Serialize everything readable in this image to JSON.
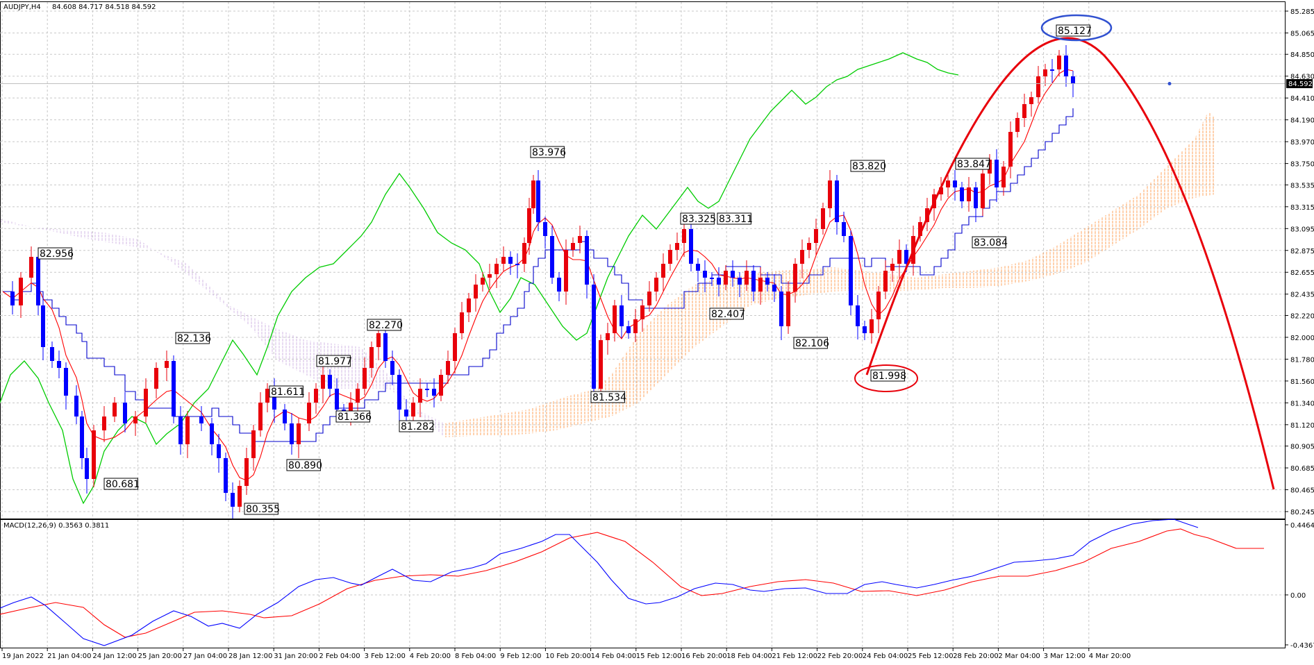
{
  "main_panel": {
    "symbol": "AUDJPY,H4",
    "ohlc": "84.608 84.717 84.518 84.592",
    "price_ticks": [
      "85.285",
      "85.065",
      "84.850",
      "84.630",
      "84.410",
      "84.190",
      "83.970",
      "83.750",
      "83.535",
      "83.315",
      "83.095",
      "82.875",
      "82.655",
      "82.435",
      "82.220",
      "82.000",
      "81.780",
      "81.560",
      "81.340",
      "81.120",
      "80.905",
      "80.685",
      "80.465",
      "80.245"
    ],
    "current_price": "84.592"
  },
  "macd_panel": {
    "label": "MACD(12,26,9) 0.3563 0.3811",
    "ticks": [
      "0.4464",
      "0.00",
      "-0.4367"
    ]
  },
  "time_labels": [
    "19 Jan 2022",
    "21 Jan 04:00",
    "24 Jan 12:00",
    "25 Jan 20:00",
    "27 Jan 04:00",
    "28 Jan 12:00",
    "31 Jan 20:00",
    "2 Feb 04:00",
    "3 Feb 12:00",
    "4 Feb 20:00",
    "8 Feb 04:00",
    "9 Feb 12:00",
    "10 Feb 20:00",
    "14 Feb 04:00",
    "15 Feb 12:00",
    "16 Feb 20:00",
    "18 Feb 04:00",
    "21 Feb 12:00",
    "22 Feb 20:00",
    "24 Feb 04:00",
    "25 Feb 12:00",
    "28 Feb 20:00",
    "2 Mar 04:00",
    "3 Mar 12:00",
    "4 Mar 20:00"
  ],
  "annotations": [
    "82.956",
    "82.136",
    "80.681",
    "80.355",
    "81.611",
    "80.890",
    "81.977",
    "81.366",
    "82.270",
    "81.282",
    "83.976",
    "81.534",
    "83.325",
    "83.311",
    "82.407",
    "82.106",
    "83.820",
    "81.998",
    "83.847",
    "83.084",
    "85.127"
  ],
  "colors": {
    "bull": "#e8000b",
    "bear": "#0000ff",
    "tenkan": "#ff0000",
    "kijun": "#0000cc",
    "chikou": "#00cc00",
    "arc": "#e8000b"
  },
  "chart_data": [
    {
      "type": "candlestick",
      "title": "AUDJPY,H4",
      "indicators": [
        "Ichimoku Kinko Hyo (tenkan, kijun, chikou, cloud)"
      ],
      "ylim": [
        80.245,
        85.285
      ],
      "grid": true,
      "key_levels": [
        {
          "time": "~20 Jan 2022",
          "price": 82.956,
          "kind": "high"
        },
        {
          "time": "~25 Jan 2022",
          "price": 82.136,
          "kind": "high"
        },
        {
          "time": "~24 Jan 2022",
          "price": 80.681,
          "kind": "low"
        },
        {
          "time": "~28 Jan 2022",
          "price": 80.355,
          "kind": "low"
        },
        {
          "time": "~31 Jan 2022",
          "price": 81.611,
          "kind": "high"
        },
        {
          "time": "~1 Feb 2022",
          "price": 80.89,
          "kind": "low"
        },
        {
          "time": "~2 Feb 2022",
          "price": 81.977,
          "kind": "high"
        },
        {
          "time": "~3 Feb 2022",
          "price": 81.366,
          "kind": "low"
        },
        {
          "time": "~4 Feb 2022",
          "price": 82.27,
          "kind": "high"
        },
        {
          "time": "~4 Feb 2022",
          "price": 81.282,
          "kind": "low"
        },
        {
          "time": "~10 Feb 2022",
          "price": 83.976,
          "kind": "high"
        },
        {
          "time": "~14 Feb 2022",
          "price": 81.534,
          "kind": "low"
        },
        {
          "time": "~16 Feb 2022",
          "price": 83.325,
          "kind": "high"
        },
        {
          "time": "~18 Feb 2022",
          "price": 83.311,
          "kind": "high"
        },
        {
          "time": "~18 Feb 2022",
          "price": 82.407,
          "kind": "low"
        },
        {
          "time": "~21 Feb 2022",
          "price": 82.106,
          "kind": "low"
        },
        {
          "time": "~23 Feb 2022",
          "price": 83.82,
          "kind": "high"
        },
        {
          "time": "~24 Feb 2022",
          "price": 81.998,
          "kind": "low"
        },
        {
          "time": "~28 Feb 2022",
          "price": 83.847,
          "kind": "high"
        },
        {
          "time": "~1 Mar 2022",
          "price": 83.084,
          "kind": "low"
        },
        {
          "time": "~3 Mar 2022",
          "price": 85.127,
          "kind": "high"
        }
      ],
      "last_price": 84.592
    },
    {
      "type": "line",
      "title": "MACD(12,26,9)",
      "series": [
        {
          "name": "MACD",
          "values_last": 0.3563
        },
        {
          "name": "Signal",
          "values_last": 0.3811
        }
      ],
      "ylim": [
        -0.4367,
        0.4464
      ]
    }
  ]
}
